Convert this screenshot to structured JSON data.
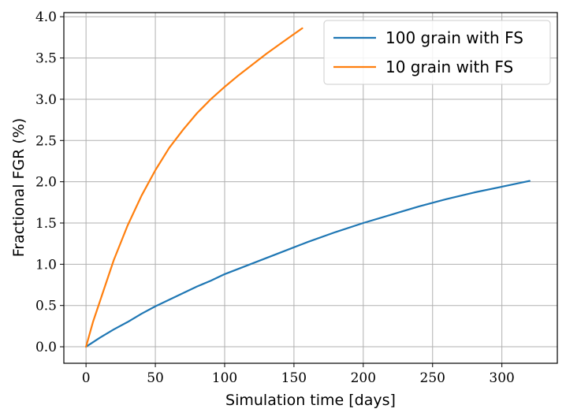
{
  "chart_data": {
    "type": "line",
    "title": "",
    "xlabel": "Simulation time [days]",
    "ylabel": "Fractional FGR (%)",
    "xlim": [
      -16,
      340
    ],
    "ylim": [
      -0.2,
      4.05
    ],
    "xticks": [
      0,
      50,
      100,
      150,
      200,
      250,
      300
    ],
    "yticks": [
      0.0,
      0.5,
      1.0,
      1.5,
      2.0,
      2.5,
      3.0,
      3.5,
      4.0
    ],
    "xtick_labels": [
      "0",
      "50",
      "100",
      "150",
      "200",
      "250",
      "300"
    ],
    "ytick_labels": [
      "0.0",
      "0.5",
      "1.0",
      "1.5",
      "2.0",
      "2.5",
      "3.0",
      "3.5",
      "4.0"
    ],
    "grid": true,
    "legend_position": "top-right",
    "series": [
      {
        "name": "100 grain with FS",
        "color": "#1f77b4",
        "x": [
          0,
          10,
          20,
          30,
          40,
          50,
          60,
          70,
          80,
          90,
          100,
          120,
          140,
          160,
          180,
          200,
          220,
          240,
          260,
          280,
          300,
          320
        ],
        "y": [
          0.0,
          0.11,
          0.21,
          0.3,
          0.4,
          0.49,
          0.57,
          0.65,
          0.73,
          0.8,
          0.88,
          1.01,
          1.14,
          1.27,
          1.39,
          1.5,
          1.6,
          1.7,
          1.79,
          1.87,
          1.94,
          2.01
        ]
      },
      {
        "name": "10 grain with FS",
        "color": "#ff7f0e",
        "x": [
          0,
          5,
          10,
          20,
          30,
          40,
          50,
          60,
          70,
          80,
          90,
          100,
          110,
          120,
          130,
          140,
          150,
          156
        ],
        "y": [
          0.0,
          0.3,
          0.55,
          1.05,
          1.47,
          1.83,
          2.14,
          2.41,
          2.63,
          2.83,
          3.0,
          3.15,
          3.29,
          3.42,
          3.55,
          3.67,
          3.79,
          3.86
        ]
      }
    ]
  }
}
